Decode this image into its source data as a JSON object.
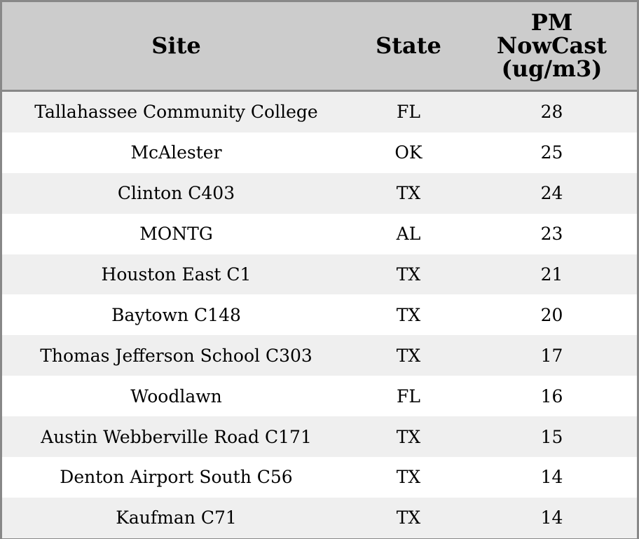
{
  "table": {
    "header": [
      "Site",
      "State",
      "PM NowCast (ug/m3)"
    ],
    "rows": [
      [
        "Tallahassee Community College",
        "FL",
        28
      ],
      [
        "McAlester",
        "OK",
        25
      ],
      [
        "Clinton C403",
        "TX",
        24
      ],
      [
        "MONTG",
        "AL",
        23
      ],
      [
        "Houston East C1",
        "TX",
        21
      ],
      [
        "Baytown C148",
        "TX",
        20
      ],
      [
        "Thomas Jefferson School C303",
        "TX",
        17
      ],
      [
        "Woodlawn",
        "FL",
        16
      ],
      [
        "Austin Webberville Road C171",
        "TX",
        15
      ],
      [
        "Denton Airport South C56",
        "TX",
        14
      ],
      [
        "Kaufman C71",
        "TX",
        14
      ]
    ]
  }
}
